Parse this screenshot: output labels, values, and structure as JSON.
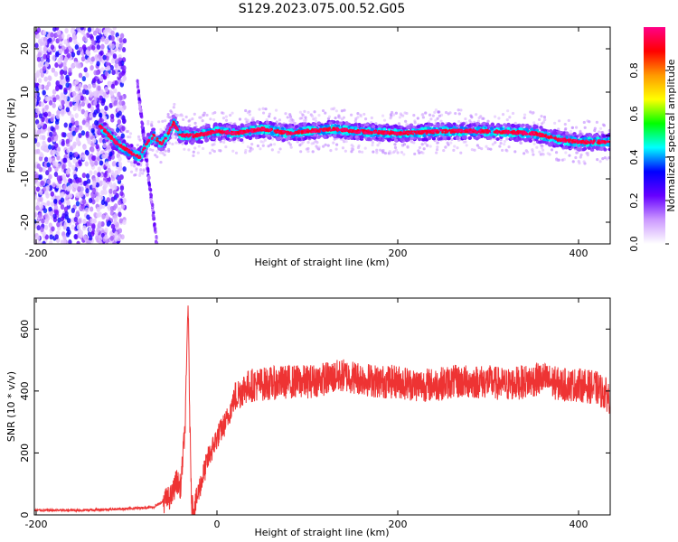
{
  "figure_title": "S129.2023.075.00.52.G05",
  "chart_data": [
    {
      "type": "heatmap",
      "xlabel": "Height of straight line (km)",
      "ylabel": "Frequency (Hz)",
      "xlim": [
        -202,
        435
      ],
      "ylim": [
        -25,
        25
      ],
      "xticks": [
        -200,
        0,
        200,
        400
      ],
      "yticks": [
        -20,
        -10,
        0,
        10,
        20
      ],
      "colorbar": {
        "label": "Normalized spectral amplitude",
        "range": [
          0,
          1
        ],
        "ticks": [
          0.0,
          0.2,
          0.4,
          0.6,
          0.8
        ],
        "tick_labels": [
          "0.0",
          "0.2",
          "0.4",
          "0.6",
          "0.8"
        ],
        "colormap": [
          "#ffffff",
          "#cc99ff",
          "#6600ff",
          "#0000ff",
          "#00ffff",
          "#00ff00",
          "#ffff00",
          "#ff9900",
          "#ff0000",
          "#ff0088"
        ]
      },
      "ridge": {
        "description_points_x": [
          -128,
          -110,
          -95,
          -85,
          -78,
          -70,
          -62,
          -55,
          -48,
          -40,
          -25,
          -10,
          0,
          20,
          50,
          80,
          100,
          130,
          150,
          200,
          250,
          300,
          350,
          380,
          400,
          435
        ],
        "description_points_y": [
          2,
          -2,
          -4,
          -5,
          -2,
          0,
          -2,
          0,
          3,
          0,
          0,
          0.5,
          1,
          0.5,
          1.5,
          0.5,
          1,
          1.5,
          1,
          0.5,
          1,
          1,
          0.5,
          -1,
          -1.5,
          -1.5
        ]
      }
    },
    {
      "type": "line",
      "xlabel": "Height of straight line (km)",
      "ylabel": "SNR (10 * v/v)",
      "xlim": [
        -202,
        435
      ],
      "ylim": [
        0,
        700
      ],
      "xticks": [
        -200,
        0,
        200,
        400
      ],
      "yticks": [
        0,
        200,
        400,
        600
      ],
      "color": "#ee3333",
      "series": [
        {
          "x": [
            -202,
            -150,
            -100,
            -70,
            -50,
            -45,
            -40,
            -35,
            -32,
            -30,
            -28,
            -25,
            -20,
            -10,
            0,
            10,
            20,
            30,
            40,
            60,
            80,
            100,
            120,
            140,
            160,
            180,
            200,
            220,
            240,
            260,
            280,
            300,
            320,
            340,
            360,
            380,
            400,
            420,
            435
          ],
          "y": [
            15,
            15,
            20,
            25,
            60,
            110,
            90,
            300,
            700,
            300,
            40,
            20,
            80,
            180,
            250,
            300,
            380,
            410,
            420,
            425,
            430,
            430,
            440,
            450,
            440,
            430,
            430,
            420,
            420,
            430,
            430,
            430,
            420,
            430,
            440,
            420,
            420,
            410,
            380
          ]
        }
      ]
    }
  ]
}
